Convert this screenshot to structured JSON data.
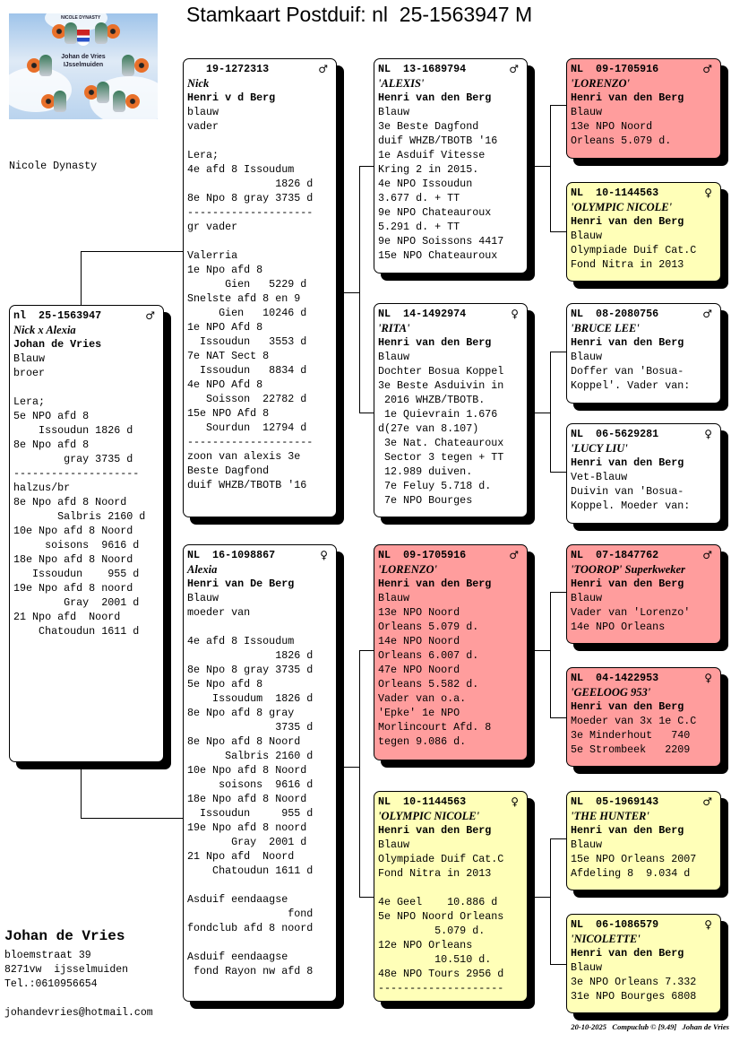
{
  "header": {
    "title": "Stamkaart Postduif: nl  25-1563947 M"
  },
  "logo": {
    "top_text": "NICOLE DYNASTY",
    "text_line1": "Johan de Vries",
    "text_line2": "IJsselmuiden"
  },
  "dynasty_label": "Nicole Dynasty",
  "colors": {
    "male_highlight": "#ff9d9d",
    "female_highlight": "#ffffb8",
    "default": "#ffffff"
  },
  "sex_icons": {
    "male": "♂",
    "female": "♀"
  },
  "cards": [
    {
      "id": "subject",
      "ring": "nl  25-1563947",
      "sex": "male",
      "name": "Nick x Alexia",
      "owner": "Johan de Vries",
      "bg": "default",
      "lines": [
        "Blauw",
        "broer",
        "",
        "Lera;",
        "5e NPO afd 8",
        "    Issoudun 1826 d",
        "8e Npo afd 8",
        "        gray 3735 d",
        "--------------------",
        "halzus/br",
        "8e Npo afd 8 Noord",
        "       Salbris 2160 d",
        "10e Npo afd 8 Noord",
        "     soisons  9616 d",
        "18e Npo afd 8 Noord",
        "   Issoudun    955 d",
        "19e Npo afd 8 noord",
        "        Gray  2001 d",
        "21 Npo afd  Noord",
        "    Chatoudun 1611 d"
      ]
    },
    {
      "id": "sire",
      "ring": "   19-1272313",
      "sex": "male",
      "name": "Nick",
      "owner": "Henri v d Berg",
      "bg": "default",
      "lines": [
        "blauw",
        "vader",
        "",
        "Lera;",
        "4e afd 8 Issoudum",
        "              1826 d",
        "8e Npo 8 gray 3735 d",
        "--------------------",
        "gr vader",
        "",
        "Valerria",
        "1e Npo afd 8",
        "      Gien   5229 d",
        "Snelste afd 8 en 9",
        "     Gien   10246 d",
        "1e NPO Afd 8",
        "  Issoudun   3553 d",
        "7e NAT Sect 8",
        "  Issoudun   8834 d",
        "4e NPO Afd 8",
        "   Soisson  22782 d",
        "15e NPO Afd 8",
        "   Sourdun  12794 d",
        "--------------------",
        "zoon van alexis 3e",
        "Beste Dagfond",
        "duif WHZB/TBOTB '16"
      ]
    },
    {
      "id": "dam",
      "ring": "NL  16-1098867",
      "sex": "female",
      "name": "Alexia",
      "owner": "Henri van De Berg",
      "bg": "default",
      "lines": [
        "Blauw",
        "moeder van",
        "",
        "4e afd 8 Issoudum",
        "              1826 d",
        "8e Npo 8 gray 3735 d",
        "5e Npo afd 8",
        "    Issoudum  1826 d",
        "8e Npo afd 8 gray",
        "              3735 d",
        "8e Npo afd 8 Noord",
        "      Salbris 2160 d",
        "10e Npo afd 8 Noord",
        "     soisons  9616 d",
        "18e Npo afd 8 Noord",
        "  Issoudun     955 d",
        "19e Npo afd 8 noord",
        "       Gray  2001 d",
        "21 Npo afd  Noord",
        "    Chatoudun 1611 d",
        "",
        "Asduif eendaagse",
        "                fond",
        "fondclub afd 8 noord",
        "",
        "Asduif eendaagse",
        " fond Rayon nw afd 8"
      ]
    },
    {
      "id": "ss",
      "ring": "NL  13-1689794",
      "sex": "male",
      "name": "'ALEXIS'",
      "owner": "Henri van den Berg",
      "bg": "default",
      "lines": [
        "Blauw",
        "3e Beste Dagfond",
        "duif WHZB/TBOTB '16",
        "1e Asduif Vitesse",
        "Kring 2 in 2015.",
        "4e NPO Issoudun",
        "3.677 d. + TT",
        "9e NPO Chateauroux",
        "5.291 d. + TT",
        "9e NPO Soissons 4417",
        "15e NPO Chateauroux"
      ]
    },
    {
      "id": "sd",
      "ring": "NL  14-1492974",
      "sex": "female",
      "name": "'RITA'",
      "owner": "Henri van den Berg",
      "bg": "default",
      "lines": [
        "Blauw",
        "Dochter Bosua Koppel",
        "3e Beste Asduivin in",
        " 2016 WHZB/TBOTB.",
        " 1e Quievrain 1.676",
        "d(27e van 8.107)",
        " 3e Nat. Chateauroux",
        " Sector 3 tegen + TT",
        " 12.989 duiven.",
        " 7e Feluy 5.718 d.",
        " 7e NPO Bourges"
      ]
    },
    {
      "id": "ds",
      "ring": "NL  09-1705916",
      "sex": "male",
      "name": "'LORENZO'",
      "owner": "Henri van den Berg",
      "bg": "male_highlight",
      "lines": [
        "Blauw",
        "13e NPO Noord",
        "Orleans 5.079 d.",
        "14e NPO Noord",
        "Orleans 6.007 d.",
        "47e NPO Noord",
        "Orleans 5.582 d.",
        "Vader van o.a.",
        "'Epke' 1e NPO",
        "Morlincourt Afd. 8",
        "tegen 9.086 d."
      ]
    },
    {
      "id": "dd",
      "ring": "NL  10-1144563",
      "sex": "female",
      "name": "'OLYMPIC NICOLE'",
      "owner": "Henri van den Berg",
      "bg": "female_highlight",
      "lines": [
        "Blauw",
        "Olympiade Duif Cat.C",
        "Fond Nitra in 2013",
        "",
        "4e Geel    10.886 d",
        "5e NPO Noord Orleans",
        "         5.079 d.",
        "12e NPO Orleans",
        "         10.510 d.",
        "48e NPO Tours 2956 d",
        "--------------------"
      ]
    },
    {
      "id": "sss",
      "ring": "NL  09-1705916",
      "sex": "male",
      "name": "'LORENZO'",
      "owner": "Henri van den Berg",
      "bg": "male_highlight",
      "lines": [
        "Blauw",
        "13e NPO Noord",
        "Orleans 5.079 d."
      ]
    },
    {
      "id": "ssd",
      "ring": "NL  10-1144563",
      "sex": "female",
      "name": "'OLYMPIC NICOLE'",
      "owner": "Henri van den Berg",
      "bg": "female_highlight",
      "lines": [
        "Blauw",
        "Olympiade Duif Cat.C",
        "Fond Nitra in 2013"
      ]
    },
    {
      "id": "sds",
      "ring": "NL  08-2080756",
      "sex": "male",
      "name": "'BRUCE LEE'",
      "owner": "Henri van den Berg",
      "bg": "default",
      "lines": [
        "Blauw",
        "Doffer van 'Bosua-",
        "Koppel'. Vader van:"
      ]
    },
    {
      "id": "sdd",
      "ring": "NL  06-5629281",
      "sex": "female",
      "name": "'LUCY LIU'",
      "owner": "Henri van den Berg",
      "bg": "default",
      "lines": [
        "Vet-Blauw",
        "Duivin van 'Bosua-",
        "Koppel. Moeder van:"
      ]
    },
    {
      "id": "dss",
      "ring": "NL  07-1847762",
      "sex": "male",
      "name": "'TOOROP' Superkweker",
      "owner": "Henri van den Berg",
      "bg": "male_highlight",
      "lines": [
        "Blauw",
        "Vader van 'Lorenzo'",
        "14e NPO Orleans"
      ]
    },
    {
      "id": "dsd",
      "ring": "NL  04-1422953",
      "sex": "female",
      "name": "'GEELOOG 953'",
      "owner": "Henri van den Berg",
      "bg": "male_highlight",
      "lines": [
        "Moeder van 3x 1e C.C",
        "3e Minderhout   740",
        "5e Strombeek   2209"
      ]
    },
    {
      "id": "dds",
      "ring": "NL  05-1969143",
      "sex": "male",
      "name": "'THE HUNTER'",
      "owner": "Henri van den Berg",
      "bg": "female_highlight",
      "lines": [
        "Blauw",
        "15e NPO Orleans 2007",
        "Afdeling 8  9.034 d"
      ]
    },
    {
      "id": "ddd",
      "ring": "NL  06-1086579",
      "sex": "female",
      "name": "'NICOLETTE'",
      "owner": "Henri van den Berg",
      "bg": "female_highlight",
      "lines": [
        "Blauw",
        "3e NPO Orleans 7.332",
        "31e NPO Bourges 6808"
      ]
    }
  ],
  "owner": {
    "name": "Johan de Vries",
    "street": "bloemstraat 39",
    "city": "8271vw  ijsselmuiden",
    "phone": "Tel.:0610956654",
    "email": "johandevries@hotmail.com"
  },
  "footer": {
    "text": "20-10-2025   Compuclub © [9.49]   Johan de Vries"
  }
}
